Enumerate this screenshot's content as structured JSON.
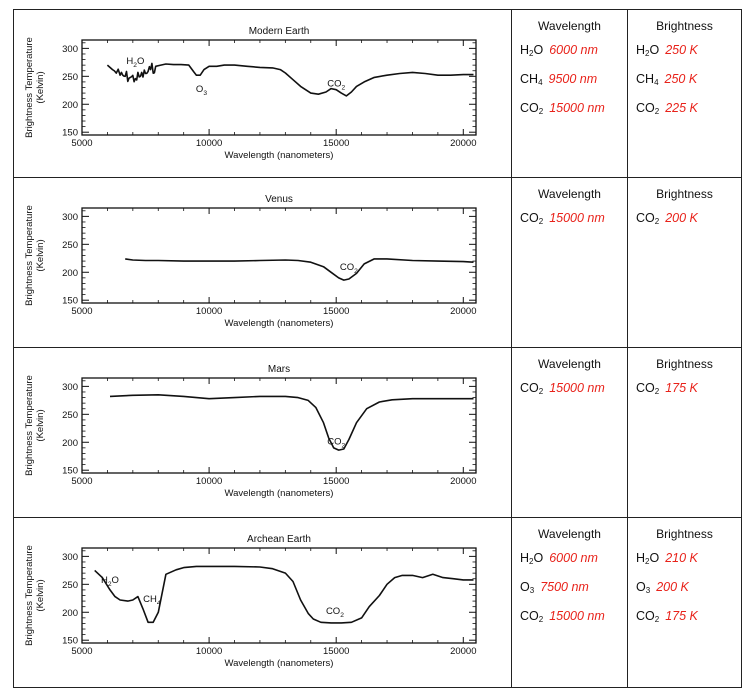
{
  "chart_data": [
    {
      "type": "line",
      "title": "Modern Earth",
      "xlabel": "Wavelength (nanometers)",
      "ylabel": "Brightness Temperature (Kelvin)",
      "xlim": [
        5000,
        20500
      ],
      "ylim": [
        145,
        315
      ],
      "xticks": [
        "5000",
        "10000",
        "15000",
        "20000"
      ],
      "yticks": [
        "150",
        "200",
        "250",
        "300"
      ],
      "noisy": true,
      "series": [
        {
          "x": [
            6000,
            6200,
            6500,
            6700,
            6900,
            7100,
            7300,
            7500,
            7700,
            7900,
            8100,
            8300,
            8600,
            8900,
            9200,
            9400,
            9500,
            9650,
            9800,
            10000,
            10300,
            10600,
            11000,
            11500,
            12000,
            12500,
            12800,
            13000,
            13300,
            13600,
            14000,
            14300,
            14600,
            14800,
            15000,
            15200,
            15400,
            15600,
            15800,
            16100,
            16500,
            17000,
            17500,
            18000,
            18500,
            19000,
            19500,
            20000,
            20400
          ],
          "y": [
            270,
            262,
            252,
            250,
            248,
            246,
            250,
            255,
            262,
            268,
            270,
            272,
            271,
            271,
            270,
            258,
            252,
            252,
            262,
            268,
            268,
            270,
            270,
            268,
            266,
            265,
            262,
            256,
            244,
            232,
            220,
            218,
            222,
            228,
            226,
            220,
            215,
            222,
            232,
            240,
            248,
            252,
            255,
            257,
            255,
            252,
            252,
            253,
            253
          ]
        }
      ],
      "annotations": [
        {
          "label": "H",
          "sub": "2",
          "tail": "O",
          "x": 7100,
          "y": 272
        },
        {
          "label": "O",
          "sub": "3",
          "tail": "",
          "x": 9700,
          "y": 222
        },
        {
          "label": "CO",
          "sub": "2",
          "tail": "",
          "x": 15000,
          "y": 232
        }
      ]
    },
    {
      "type": "line",
      "title": "Venus",
      "xlabel": "Wavelength (nanometers)",
      "ylabel": "Brightness Temperature (Kelvin)",
      "xlim": [
        5000,
        20500
      ],
      "ylim": [
        145,
        315
      ],
      "xticks": [
        "5000",
        "10000",
        "15000",
        "20000"
      ],
      "yticks": [
        "150",
        "200",
        "250",
        "300"
      ],
      "noisy": false,
      "series": [
        {
          "x": [
            6700,
            7000,
            7500,
            8000,
            9000,
            10000,
            11000,
            12000,
            13000,
            13500,
            14000,
            14500,
            14800,
            15100,
            15300,
            15500,
            15800,
            16100,
            16500,
            17000,
            18000,
            19000,
            20000,
            20400
          ],
          "y": [
            224,
            222,
            221,
            221,
            220,
            220,
            220,
            221,
            222,
            221,
            218,
            210,
            200,
            190,
            186,
            188,
            198,
            215,
            224,
            224,
            221,
            220,
            219,
            218
          ]
        }
      ],
      "annotations": [
        {
          "label": "CO",
          "sub": "2",
          "tail": "",
          "x": 15500,
          "y": 204
        }
      ]
    },
    {
      "type": "line",
      "title": "Mars",
      "xlabel": "Wavelength (nanometers)",
      "ylabel": "Brightness Temperature (Kelvin)",
      "xlim": [
        5000,
        20500
      ],
      "ylim": [
        145,
        315
      ],
      "xticks": [
        "5000",
        "10000",
        "15000",
        "20000"
      ],
      "yticks": [
        "150",
        "200",
        "250",
        "300"
      ],
      "noisy": false,
      "series": [
        {
          "x": [
            6100,
            6500,
            7000,
            8000,
            9000,
            10000,
            11000,
            12000,
            13000,
            13500,
            13900,
            14200,
            14500,
            14700,
            14900,
            15100,
            15300,
            15500,
            15800,
            16200,
            16700,
            17200,
            18000,
            19000,
            20000,
            20400
          ],
          "y": [
            282,
            283,
            284,
            285,
            282,
            278,
            280,
            282,
            282,
            280,
            275,
            262,
            235,
            208,
            190,
            186,
            188,
            205,
            235,
            260,
            272,
            276,
            278,
            278,
            278,
            278
          ]
        }
      ],
      "annotations": [
        {
          "label": "CO",
          "sub": "2",
          "tail": "",
          "x": 15000,
          "y": 196
        }
      ]
    },
    {
      "type": "line",
      "title": "Archean Earth",
      "xlabel": "Wavelength (nanometers)",
      "ylabel": "Brightness Temperature (Kelvin)",
      "xlim": [
        5000,
        20500
      ],
      "ylim": [
        145,
        315
      ],
      "xticks": [
        "5000",
        "10000",
        "15000",
        "20000"
      ],
      "yticks": [
        "150",
        "200",
        "250",
        "300"
      ],
      "noisy": false,
      "series": [
        {
          "x": [
            5500,
            5800,
            6100,
            6300,
            6500,
            6800,
            7000,
            7200,
            7400,
            7600,
            7800,
            8000,
            8300,
            8700,
            9000,
            9500,
            10000,
            11000,
            12000,
            12500,
            13000,
            13300,
            13600,
            13900,
            14100,
            14400,
            14800,
            15200,
            15600,
            16000,
            16300,
            16700,
            17000,
            17300,
            17600,
            18000,
            18400,
            18800,
            19200,
            19600,
            20000,
            20400
          ],
          "y": [
            275,
            262,
            240,
            228,
            222,
            220,
            222,
            228,
            206,
            182,
            182,
            200,
            268,
            276,
            280,
            282,
            282,
            282,
            281,
            278,
            270,
            255,
            222,
            198,
            188,
            182,
            181,
            181,
            182,
            190,
            210,
            230,
            250,
            262,
            266,
            266,
            262,
            268,
            262,
            260,
            258,
            258
          ]
        }
      ],
      "annotations": [
        {
          "label": "H",
          "sub": "2",
          "tail": "O",
          "x": 6100,
          "y": 252
        },
        {
          "label": "CH",
          "sub": "4",
          "tail": "",
          "x": 7750,
          "y": 218
        },
        {
          "label": "CO",
          "sub": "2",
          "tail": "",
          "x": 14950,
          "y": 197
        }
      ]
    }
  ],
  "tables": [
    {
      "wavelength_header": "Wavelength",
      "brightness_header": "Brightness",
      "wavelength": [
        {
          "sp": "H",
          "sub": "2",
          "tail": "O",
          "value": "6000 nm"
        },
        {
          "sp": "CH",
          "sub": "4",
          "tail": "",
          "value": "9500 nm"
        },
        {
          "sp": "CO",
          "sub": "2",
          "tail": "",
          "value": "15000 nm"
        }
      ],
      "brightness": [
        {
          "sp": "H",
          "sub": "2",
          "tail": "O",
          "value": "250 K"
        },
        {
          "sp": "CH",
          "sub": "4",
          "tail": "",
          "value": "250 K"
        },
        {
          "sp": "CO",
          "sub": "2",
          "tail": "",
          "value": "225 K"
        }
      ]
    },
    {
      "wavelength_header": "Wavelength",
      "brightness_header": "Brightness",
      "wavelength": [
        {
          "sp": "CO",
          "sub": "2",
          "tail": "",
          "value": "15000 nm"
        }
      ],
      "brightness": [
        {
          "sp": "CO",
          "sub": "2",
          "tail": "",
          "value": "200 K"
        }
      ]
    },
    {
      "wavelength_header": "Wavelength",
      "brightness_header": "Brightness",
      "wavelength": [
        {
          "sp": "CO",
          "sub": "2",
          "tail": "",
          "value": "15000 nm"
        }
      ],
      "brightness": [
        {
          "sp": "CO",
          "sub": "2",
          "tail": "",
          "value": "175 K"
        }
      ]
    },
    {
      "wavelength_header": "Wavelength",
      "brightness_header": "Brightness",
      "wavelength": [
        {
          "sp": "H",
          "sub": "2",
          "tail": "O",
          "value": "6000 nm"
        },
        {
          "sp": "O",
          "sub": "3",
          "tail": "",
          "value": "7500 nm"
        },
        {
          "sp": "CO",
          "sub": "2",
          "tail": "",
          "value": "15000 nm"
        }
      ],
      "brightness": [
        {
          "sp": "H",
          "sub": "2",
          "tail": "O",
          "value": "210 K"
        },
        {
          "sp": "O",
          "sub": "3",
          "tail": "",
          "value": "200 K"
        },
        {
          "sp": "CO",
          "sub": "2",
          "tail": "",
          "value": "175 K"
        }
      ]
    }
  ]
}
